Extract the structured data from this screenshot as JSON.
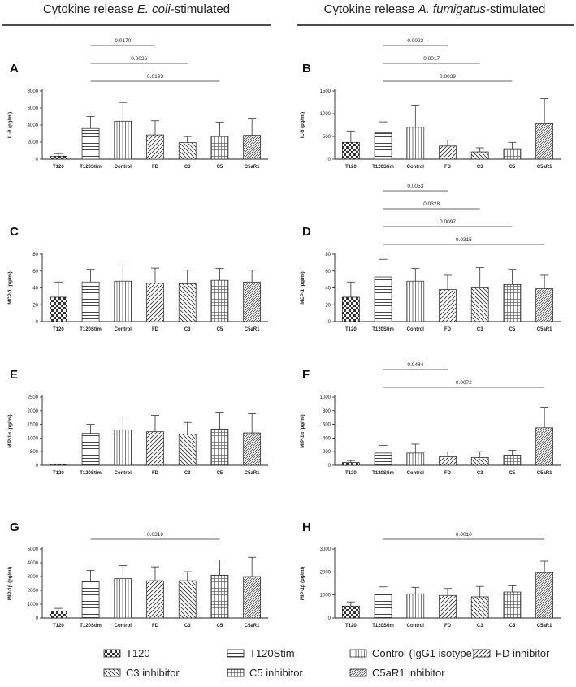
{
  "columns": [
    {
      "title_prefix": "Cytokine release ",
      "title_italic": "E. coli",
      "title_suffix": "-stimulated"
    },
    {
      "title_prefix": "Cytokine release ",
      "title_italic": "A. fumigatus",
      "title_suffix": "-stimulated"
    }
  ],
  "legend": [
    {
      "key": "T120",
      "label": "T120"
    },
    {
      "key": "T120Stim",
      "label": "T120Stim"
    },
    {
      "key": "Control",
      "label": "Control (IgG1 isotype)"
    },
    {
      "key": "FD",
      "label": "FD inhibitor"
    },
    {
      "key": "C3",
      "label": "C3 inhibitor"
    },
    {
      "key": "C5",
      "label": "C5 inhibitor"
    },
    {
      "key": "C5aR1",
      "label": "C5aR1 inhibitor"
    }
  ],
  "chart_data": [
    {
      "panel": "A",
      "type": "bar",
      "column": 0,
      "ylabel": "IL-8 (pg/ml)",
      "ylim": [
        0,
        8000
      ],
      "yticks": [
        0,
        2000,
        4000,
        6000,
        8000
      ],
      "categories": [
        "T120",
        "T120Stim",
        "Control",
        "FD",
        "C3",
        "C5",
        "C5aR1"
      ],
      "values": [
        350,
        3600,
        4450,
        2850,
        1950,
        2700,
        2800
      ],
      "errors": [
        300,
        1400,
        2200,
        1650,
        700,
        1650,
        2000
      ],
      "comparisons": [
        {
          "from": "T120Stim",
          "to": "FD",
          "p": "0.0170"
        },
        {
          "from": "T120Stim",
          "to": "C3",
          "p": "0.0036"
        },
        {
          "from": "T120Stim",
          "to": "C5",
          "p": "0.0193"
        }
      ]
    },
    {
      "panel": "B",
      "type": "bar",
      "column": 1,
      "ylabel": "IL-8 (pg/ml)",
      "ylim": [
        0,
        1500
      ],
      "yticks": [
        0,
        500,
        1000,
        1500
      ],
      "categories": [
        "T120",
        "T120Stim",
        "Control",
        "FD",
        "C3",
        "C5",
        "C5aR1"
      ],
      "values": [
        370,
        580,
        700,
        290,
        160,
        230,
        780
      ],
      "errors": [
        250,
        240,
        490,
        130,
        90,
        140,
        550
      ],
      "comparisons": [
        {
          "from": "T120Stim",
          "to": "FD",
          "p": "0.0023"
        },
        {
          "from": "T120Stim",
          "to": "C3",
          "p": "0.0017"
        },
        {
          "from": "T120Stim",
          "to": "C5",
          "p": "0.0039"
        }
      ]
    },
    {
      "panel": "C",
      "type": "bar",
      "column": 0,
      "ylabel": "MCP-1 (pg/ml)",
      "ylim": [
        0,
        80
      ],
      "yticks": [
        0,
        20,
        40,
        60,
        80
      ],
      "categories": [
        "T120",
        "T120Stim",
        "Control",
        "FD",
        "C3",
        "C5",
        "C5aR1"
      ],
      "values": [
        29,
        47,
        48,
        45.5,
        45,
        49,
        47
      ],
      "errors": [
        18,
        15,
        18,
        18,
        16,
        14,
        14
      ],
      "comparisons": []
    },
    {
      "panel": "D",
      "type": "bar",
      "column": 1,
      "ylabel": "MCP-1 (pg/ml)",
      "ylim": [
        0,
        80
      ],
      "yticks": [
        0,
        20,
        40,
        60,
        80
      ],
      "categories": [
        "T120",
        "T120Stim",
        "Control",
        "FD",
        "C3",
        "C5",
        "C5aR1"
      ],
      "values": [
        29,
        53,
        48,
        38,
        40,
        44,
        39
      ],
      "errors": [
        18,
        21,
        15,
        17,
        24,
        18,
        16
      ],
      "comparisons": [
        {
          "from": "T120Stim",
          "to": "FD",
          "p": "0.0053"
        },
        {
          "from": "T120Stim",
          "to": "C3",
          "p": "0.0328"
        },
        {
          "from": "T120Stim",
          "to": "C5",
          "p": "0.0097"
        },
        {
          "from": "T120Stim",
          "to": "C5aR1",
          "p": "0.0315"
        }
      ]
    },
    {
      "panel": "E",
      "type": "bar",
      "column": 0,
      "ylabel": "MIP-1α (pg/ml)",
      "ylim": [
        0,
        2500
      ],
      "yticks": [
        0,
        500,
        1000,
        1500,
        2000,
        2500
      ],
      "categories": [
        "T120",
        "T120Stim",
        "Control",
        "FD",
        "C3",
        "C5",
        "C5aR1"
      ],
      "values": [
        30,
        1170,
        1300,
        1230,
        1150,
        1330,
        1190
      ],
      "errors": [
        20,
        330,
        470,
        600,
        420,
        620,
        700
      ],
      "comparisons": []
    },
    {
      "panel": "F",
      "type": "bar",
      "column": 1,
      "ylabel": "MIP-1α (pg/ml)",
      "ylim": [
        0,
        1000
      ],
      "yticks": [
        0,
        200,
        400,
        600,
        800,
        1000
      ],
      "categories": [
        "T120",
        "T120Stim",
        "Control",
        "FD",
        "C3",
        "C5",
        "C5aR1"
      ],
      "values": [
        40,
        180,
        180,
        125,
        115,
        150,
        550
      ],
      "errors": [
        30,
        110,
        130,
        70,
        85,
        70,
        300
      ],
      "comparisons": [
        {
          "from": "T120Stim",
          "to": "FD",
          "p": "0.0484"
        },
        {
          "from": "T120Stim",
          "to": "C5aR1",
          "p": "0.0072"
        }
      ]
    },
    {
      "panel": "G",
      "type": "bar",
      "column": 0,
      "ylabel": "MIP-1β (pg/ml)",
      "ylim": [
        0,
        5000
      ],
      "yticks": [
        0,
        1000,
        2000,
        3000,
        4000,
        5000
      ],
      "categories": [
        "T120",
        "T120Stim",
        "Control",
        "FD",
        "C3",
        "C5",
        "C5aR1"
      ],
      "values": [
        500,
        2650,
        2850,
        2700,
        2700,
        3100,
        3000
      ],
      "errors": [
        200,
        800,
        950,
        1000,
        650,
        1100,
        1400
      ],
      "comparisons": [
        {
          "from": "T120Stim",
          "to": "C5",
          "p": "0.0319"
        }
      ]
    },
    {
      "panel": "H",
      "type": "bar",
      "column": 1,
      "ylabel": "MIP-1β (pg/ml)",
      "ylim": [
        0,
        3000
      ],
      "yticks": [
        0,
        1000,
        2000,
        3000
      ],
      "categories": [
        "T120",
        "T120Stim",
        "Control",
        "FD",
        "C3",
        "C5",
        "C5aR1"
      ],
      "values": [
        520,
        1020,
        1050,
        980,
        920,
        1130,
        1970
      ],
      "errors": [
        180,
        330,
        280,
        300,
        450,
        270,
        500
      ],
      "comparisons": [
        {
          "from": "T120Stim",
          "to": "C5aR1",
          "p": "0.0010"
        }
      ]
    }
  ]
}
